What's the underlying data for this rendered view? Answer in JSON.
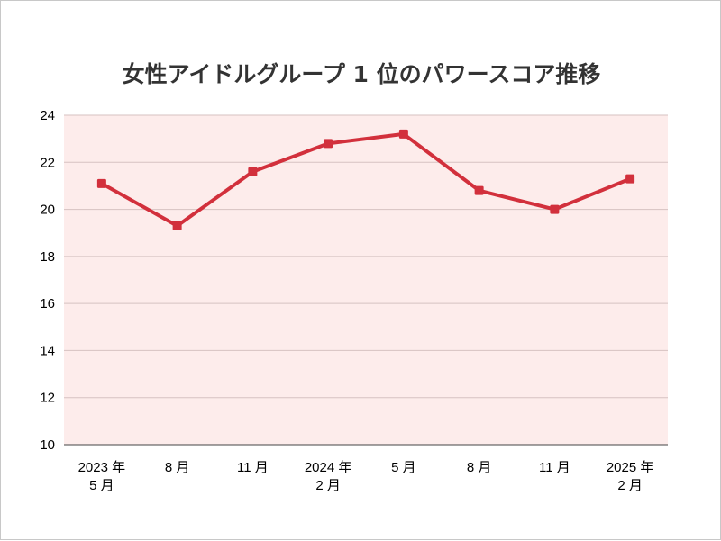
{
  "chart_data": {
    "type": "line",
    "title": "女性アイドルグループ 1 位のパワースコア推移",
    "xlabel": "",
    "ylabel": "",
    "categories": [
      [
        "2023 年",
        "5 月"
      ],
      [
        "8 月"
      ],
      [
        "11 月"
      ],
      [
        "2024 年",
        "2 月"
      ],
      [
        "5 月"
      ],
      [
        "8 月"
      ],
      [
        "11 月"
      ],
      [
        "2025 年",
        "2 月"
      ]
    ],
    "series": [
      {
        "values": [
          21.1,
          19.3,
          21.6,
          22.8,
          23.2,
          20.8,
          20.0,
          21.3
        ]
      }
    ],
    "ylim": [
      10,
      24
    ],
    "yticks": [
      10,
      12,
      14,
      16,
      18,
      20,
      22,
      24
    ],
    "grid": true,
    "legend": "none",
    "colors": {
      "line": "#d2303c",
      "plot_background": "#fdeceb",
      "grid": "#d6c2c1"
    }
  }
}
